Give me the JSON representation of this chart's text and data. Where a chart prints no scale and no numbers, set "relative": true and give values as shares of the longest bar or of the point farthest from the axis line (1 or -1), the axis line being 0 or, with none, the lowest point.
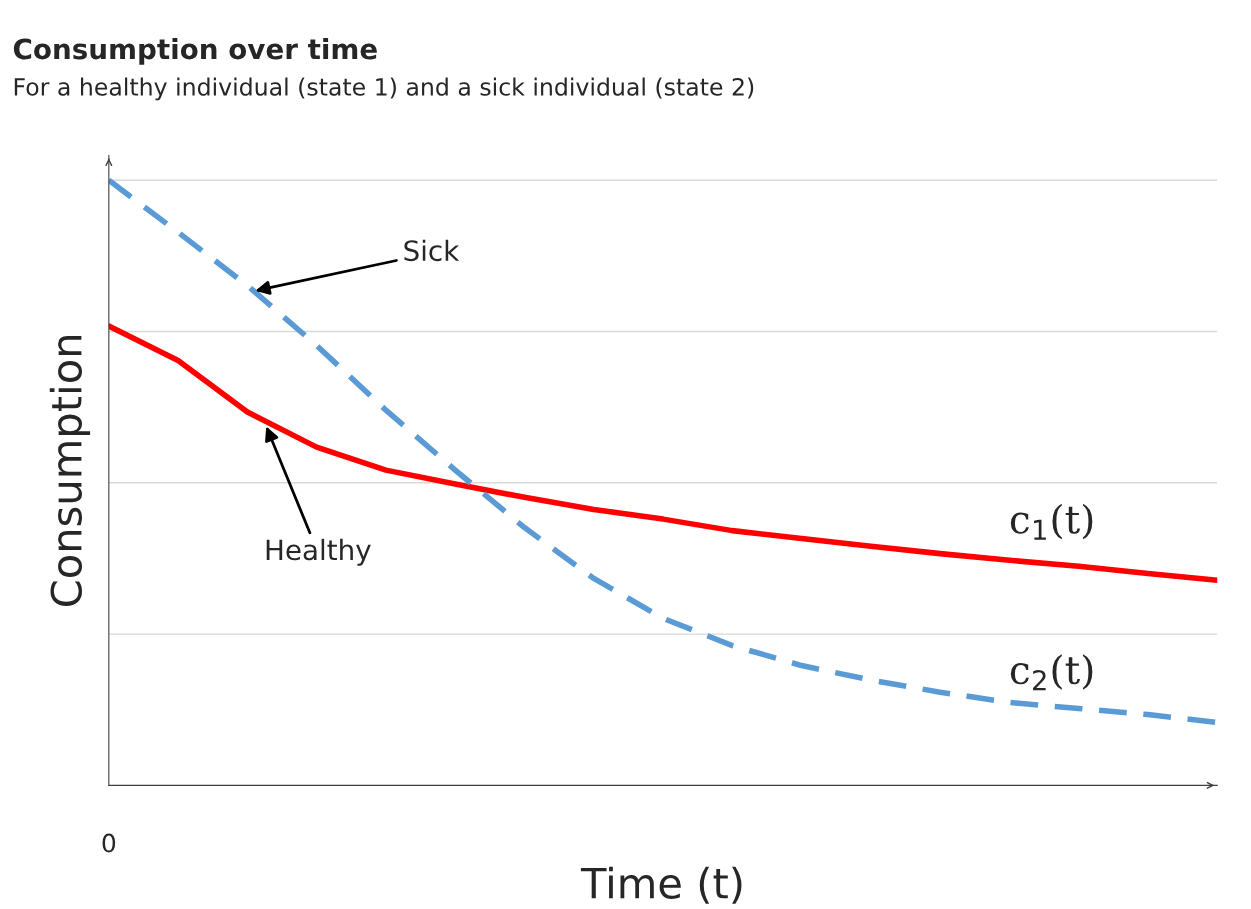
{
  "chart_data": {
    "type": "line",
    "title": "Consumption over time",
    "subtitle": "For a healthy individual (state 1) and a sick individual (state 2)",
    "xlabel": "Time (t)",
    "ylabel": "Consumption",
    "relative": true,
    "grid": "y",
    "categories": [
      null,
      null,
      null,
      null,
      null,
      null,
      null,
      null,
      null,
      null,
      null,
      null,
      null,
      null,
      null,
      null,
      null
    ],
    "series": [
      {
        "name": "c$_{1}$(t)",
        "color": "#ff0000",
        "line_style": "solid",
        "values": [
          0.759,
          0.702,
          0.617,
          0.559,
          0.521,
          0.498,
          0.476,
          0.456,
          0.44,
          0.421,
          0.408,
          0.395,
          0.383,
          0.372,
          0.362,
          0.35,
          0.339
        ]
      },
      {
        "name": "c$_{2}$(t)",
        "color": "#5b9bd5",
        "line_style": "dashed",
        "values": [
          1.0,
          0.914,
          0.826,
          0.727,
          0.62,
          0.521,
          0.426,
          0.342,
          0.276,
          0.231,
          0.198,
          0.174,
          0.154,
          0.137,
          0.127,
          0.117,
          0.104
        ]
      }
    ],
    "annotations": [
      "Sick",
      "Healthy",
      "0"
    ]
  }
}
